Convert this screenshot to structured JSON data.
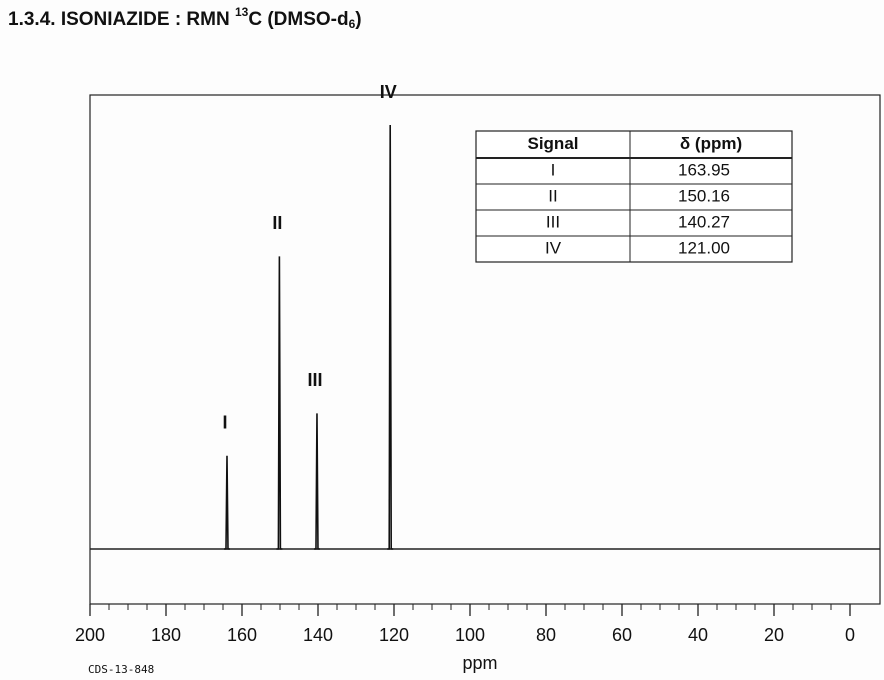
{
  "chart_data": {
    "type": "spectrum",
    "title_parts": [
      "1.3.4. ISONIAZIDE : RMN ",
      "13",
      "C (DMSO-d",
      "6",
      ")"
    ],
    "x_label": "ppm",
    "footnote": "CDS-13-848",
    "categories": [
      "I",
      "II",
      "III",
      "IV"
    ],
    "x": [
      163.95,
      150.16,
      140.27,
      121.0
    ],
    "value_labels": [
      "163.95",
      "150.16",
      "140.27",
      "121.00"
    ],
    "values": [
      22,
      69,
      32,
      100
    ],
    "ylim": [
      0,
      100
    ],
    "xlim": [
      200,
      0
    ],
    "xticks": [
      200,
      180,
      160,
      140,
      120,
      100,
      80,
      60,
      40,
      20,
      0
    ],
    "xminorticks": [
      195,
      190,
      185,
      175,
      170,
      165,
      155,
      150,
      145,
      135,
      130,
      125,
      115,
      110,
      105,
      95,
      90,
      85,
      75,
      70,
      65,
      55,
      50,
      45,
      35,
      30,
      25,
      15,
      10,
      5
    ],
    "table_headers": [
      "Signal",
      "δ (ppm)"
    ],
    "color": "#111111"
  }
}
